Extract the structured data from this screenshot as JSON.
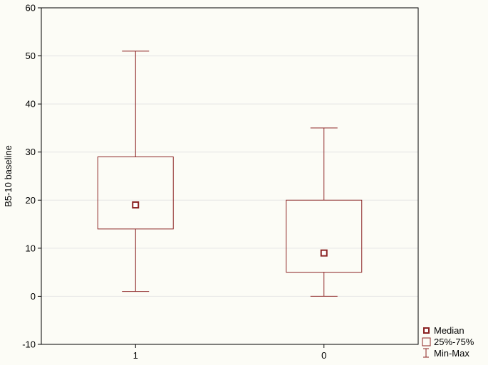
{
  "chart_data": {
    "type": "box",
    "ylabel": "B5-10 baseline",
    "ylim": [
      -10,
      60
    ],
    "y_ticks": [
      -10,
      0,
      10,
      20,
      30,
      40,
      50,
      60
    ],
    "grid": true,
    "categories": [
      "1",
      "0"
    ],
    "boxes": [
      {
        "category": "1",
        "min": 1,
        "q1": 14,
        "median": 19,
        "q3": 29,
        "max": 51
      },
      {
        "category": "0",
        "min": 0,
        "q1": 5,
        "median": 9,
        "q3": 20,
        "max": 35
      }
    ],
    "legend": {
      "position": "bottom-right",
      "items": [
        "Median",
        "25%-75%",
        "Min-Max"
      ]
    },
    "colors": {
      "box": "#8b2323",
      "background": "#fcfcf6",
      "grid": "#e4e4e4",
      "frame": "#000000"
    }
  }
}
